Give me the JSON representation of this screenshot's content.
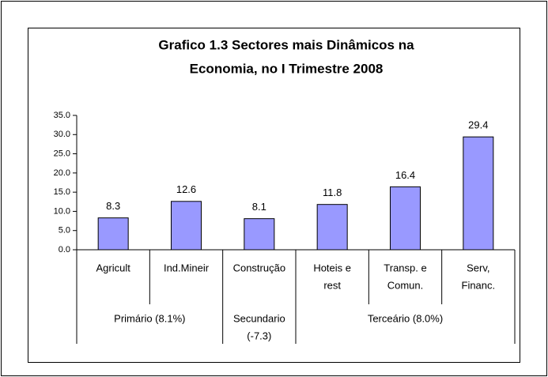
{
  "chart_data": {
    "type": "bar",
    "title": [
      "Grafico 1.3 Sectores mais Dinâmicos na",
      "Economia, no I Trimestre 2008"
    ],
    "categories": [
      [
        "Agricult"
      ],
      [
        "Ind.Mineir"
      ],
      [
        "Construção"
      ],
      [
        "Hoteis e",
        "rest"
      ],
      [
        "Transp. e",
        "Comun."
      ],
      [
        "Serv,",
        "Financ."
      ]
    ],
    "values": [
      8.3,
      12.6,
      8.1,
      11.8,
      16.4,
      29.4
    ],
    "groups": [
      {
        "name": [
          "Primário (8.1%)"
        ],
        "span": 2
      },
      {
        "name": [
          "Secundario",
          "(-7.3)"
        ],
        "span": 1
      },
      {
        "name": [
          "Terceário (8.0%)"
        ],
        "span": 3
      }
    ],
    "color": "#9999ff",
    "ylim": [
      0,
      35
    ],
    "yticks": [
      {
        "value": 0,
        "label": "0.0"
      },
      {
        "value": 5,
        "label": "5.0"
      },
      {
        "value": 10,
        "label": "10.0"
      },
      {
        "value": 15,
        "label": "15.0"
      },
      {
        "value": 20,
        "label": "20.0"
      },
      {
        "value": 25,
        "label": "25.0"
      },
      {
        "value": 30,
        "label": "30.0"
      },
      {
        "value": 35,
        "label": "35.0"
      }
    ]
  }
}
